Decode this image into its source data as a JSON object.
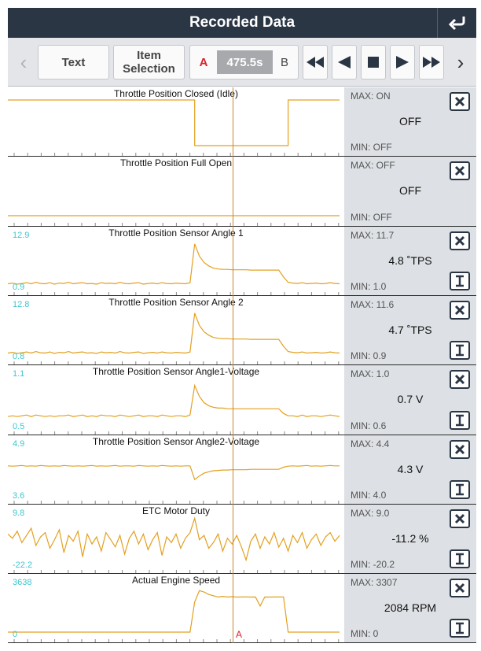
{
  "header": {
    "title": "Recorded Data"
  },
  "toolbar": {
    "text_label": "Text",
    "item_selection_label": "Item\nSelection",
    "a_label": "A",
    "time": "475.5s",
    "b_label": "B"
  },
  "cursor_label": "A",
  "colors": {
    "trace": "#e3a020",
    "scale": "#3fc6cf",
    "header": "#2b3645",
    "panel": "#dde0e4"
  },
  "rows": [
    {
      "title": "Throttle Position Closed (Idle)",
      "max": "MAX: ON",
      "value": "OFF",
      "min": "MIN: OFF",
      "y_top": "",
      "y_bottom": "",
      "has_cursor_btn": false,
      "trace": [
        1,
        1,
        1,
        1,
        1,
        1,
        1,
        1,
        1,
        1,
        1,
        1,
        1,
        1,
        1,
        1,
        1,
        1,
        1,
        1,
        1,
        1,
        1,
        1,
        1,
        1,
        1,
        1,
        1,
        1,
        1,
        1,
        1,
        1,
        1,
        1,
        1,
        1,
        1,
        1,
        0,
        0,
        0,
        0,
        0,
        0,
        0,
        0,
        0,
        0,
        0,
        0,
        0,
        0,
        0,
        0,
        0,
        0,
        0,
        0,
        1,
        1,
        1,
        1,
        1,
        1,
        1,
        1,
        1,
        1,
        1,
        1
      ]
    },
    {
      "title": "Throttle Position Full Open",
      "max": "MAX: OFF",
      "value": "OFF",
      "min": "MIN: OFF",
      "y_top": "",
      "y_bottom": "",
      "has_cursor_btn": false,
      "trace": [
        0,
        0,
        0,
        0,
        0,
        0,
        0,
        0,
        0,
        0,
        0,
        0,
        0,
        0,
        0,
        0,
        0,
        0,
        0,
        0,
        0,
        0,
        0,
        0,
        0,
        0,
        0,
        0,
        0,
        0,
        0,
        0,
        0,
        0,
        0,
        0,
        0,
        0,
        0,
        0,
        0,
        0,
        0,
        0,
        0,
        0,
        0,
        0,
        0,
        0,
        0,
        0,
        0,
        0,
        0,
        0,
        0,
        0,
        0,
        0,
        0,
        0,
        0,
        0,
        0,
        0,
        0,
        0,
        0,
        0,
        0,
        0
      ]
    },
    {
      "title": "Throttle Position Sensor Angle 1",
      "max": "MAX: 11.7",
      "value": "4.8 ˚TPS",
      "min": "MIN: 1.0",
      "y_top": "12.9",
      "y_bottom": "0.9",
      "has_cursor_btn": true,
      "trace": [
        1.2,
        1.4,
        1.1,
        1.3,
        1.5,
        1.2,
        1.6,
        1.3,
        1.2,
        1.5,
        1.1,
        1.4,
        1.3,
        1.6,
        1.2,
        1.4,
        1.5,
        1.2,
        1.3,
        1.1,
        1.5,
        1.3,
        1.4,
        1.2,
        1.6,
        1.3,
        1.2,
        1.4,
        1.5,
        1.1,
        1.3,
        1.4,
        1.2,
        1.5,
        1.3,
        1.2,
        1.4,
        1.3,
        1.2,
        1.5,
        11.7,
        8.5,
        6.8,
        5.9,
        5.3,
        5.1,
        5.0,
        5.0,
        4.9,
        4.9,
        4.9,
        4.9,
        4.8,
        4.8,
        4.8,
        4.8,
        4.8,
        4.8,
        4.8,
        3.0,
        1.6,
        1.4,
        1.3,
        1.5,
        1.2,
        1.3,
        1.4,
        1.2,
        1.3,
        1.5,
        1.3,
        1.2
      ]
    },
    {
      "title": "Throttle Position Sensor Angle 2",
      "max": "MAX: 11.6",
      "value": "4.7 ˚TPS",
      "min": "MIN: 0.9",
      "y_top": "12.8",
      "y_bottom": "0.8",
      "has_cursor_btn": true,
      "trace": [
        1.1,
        1.3,
        1.0,
        1.2,
        1.4,
        1.1,
        1.5,
        1.2,
        1.1,
        1.4,
        1.0,
        1.3,
        1.2,
        1.5,
        1.1,
        1.3,
        1.4,
        1.1,
        1.2,
        1.0,
        1.4,
        1.2,
        1.3,
        1.1,
        1.5,
        1.2,
        1.1,
        1.3,
        1.4,
        1.0,
        1.2,
        1.3,
        1.1,
        1.4,
        1.2,
        1.1,
        1.3,
        1.2,
        1.1,
        1.4,
        11.6,
        8.4,
        6.7,
        5.8,
        5.2,
        5.0,
        4.9,
        4.9,
        4.8,
        4.8,
        4.8,
        4.8,
        4.7,
        4.7,
        4.7,
        4.7,
        4.7,
        4.7,
        4.7,
        2.9,
        1.5,
        1.3,
        1.2,
        1.4,
        1.1,
        1.2,
        1.3,
        1.1,
        1.2,
        1.4,
        1.2,
        1.1
      ]
    },
    {
      "title": "Throttle Position Sensor Angle1-Voltage",
      "max": "MAX: 1.0",
      "value": "0.7 V",
      "min": "MIN: 0.6",
      "y_top": "1.1",
      "y_bottom": "0.5",
      "has_cursor_btn": true,
      "trace": [
        0.6,
        0.61,
        0.6,
        0.61,
        0.62,
        0.6,
        0.62,
        0.61,
        0.6,
        0.61,
        0.6,
        0.61,
        0.61,
        0.62,
        0.6,
        0.61,
        0.62,
        0.6,
        0.61,
        0.6,
        0.62,
        0.61,
        0.61,
        0.6,
        0.62,
        0.61,
        0.6,
        0.61,
        0.62,
        0.6,
        0.61,
        0.61,
        0.6,
        0.62,
        0.61,
        0.6,
        0.61,
        0.61,
        0.6,
        0.62,
        1.0,
        0.86,
        0.78,
        0.74,
        0.72,
        0.71,
        0.71,
        0.7,
        0.7,
        0.7,
        0.7,
        0.7,
        0.7,
        0.7,
        0.7,
        0.7,
        0.7,
        0.7,
        0.7,
        0.64,
        0.61,
        0.61,
        0.6,
        0.62,
        0.6,
        0.61,
        0.61,
        0.6,
        0.61,
        0.62,
        0.61,
        0.6
      ]
    },
    {
      "title": "Throttle Position Sensor Angle2-Voltage",
      "max": "MAX: 4.4",
      "value": "4.3 V",
      "min": "MIN: 4.0",
      "y_top": "4.9",
      "y_bottom": "3.6",
      "has_cursor_btn": true,
      "trace": [
        4.39,
        4.38,
        4.39,
        4.4,
        4.38,
        4.39,
        4.38,
        4.4,
        4.39,
        4.38,
        4.39,
        4.38,
        4.4,
        4.39,
        4.38,
        4.39,
        4.38,
        4.39,
        4.4,
        4.38,
        4.39,
        4.38,
        4.39,
        4.4,
        4.38,
        4.39,
        4.39,
        4.38,
        4.4,
        4.39,
        4.38,
        4.39,
        4.38,
        4.4,
        4.39,
        4.38,
        4.39,
        4.38,
        4.39,
        4.39,
        4.0,
        4.1,
        4.18,
        4.22,
        4.25,
        4.26,
        4.27,
        4.27,
        4.28,
        4.28,
        4.28,
        4.28,
        4.29,
        4.29,
        4.29,
        4.29,
        4.29,
        4.29,
        4.29,
        4.35,
        4.38,
        4.39,
        4.38,
        4.39,
        4.4,
        4.38,
        4.39,
        4.38,
        4.39,
        4.4,
        4.39,
        4.39
      ]
    },
    {
      "title": "ETC Motor Duty",
      "max": "MAX: 9.0",
      "value": "-11.2 %",
      "min": "MIN: -20.2",
      "y_top": "9.8",
      "y_bottom": "-22.2",
      "has_cursor_btn": true,
      "trace": [
        -2,
        -5,
        0,
        -8,
        -3,
        2,
        -10,
        -4,
        -1,
        -12,
        -6,
        1,
        -15,
        -3,
        -7,
        0,
        -18,
        -2,
        -9,
        -4,
        -14,
        -1,
        -6,
        -11,
        -3,
        -16,
        -5,
        0,
        -9,
        -2,
        -13,
        -6,
        -1,
        -17,
        -4,
        -8,
        -2,
        -12,
        -5,
        -1,
        9.0,
        -6,
        -3,
        -12,
        -8,
        -2,
        -14,
        -5,
        -9,
        -3,
        -11,
        -20.2,
        -7,
        -2,
        -12,
        -4,
        -9,
        -1,
        -11.2,
        -5,
        -14,
        -3,
        -8,
        -1,
        -12,
        -6,
        -2,
        -10,
        -4,
        -1,
        -7,
        -3
      ]
    },
    {
      "title": "Actual Engine Speed",
      "max": "MAX: 3307",
      "value": "2084 RPM",
      "min": "MIN: 0",
      "y_top": "3638",
      "y_bottom": "0",
      "has_cursor_btn": true,
      "trace": [
        0,
        0,
        0,
        0,
        0,
        0,
        0,
        0,
        0,
        0,
        0,
        0,
        0,
        0,
        0,
        0,
        0,
        0,
        0,
        0,
        0,
        0,
        0,
        0,
        0,
        0,
        0,
        0,
        0,
        0,
        0,
        0,
        0,
        0,
        0,
        0,
        0,
        0,
        0,
        0,
        2400,
        3307,
        3200,
        3000,
        2900,
        2800,
        2850,
        2800,
        2820,
        2790,
        2800,
        2810,
        2790,
        2800,
        2084,
        2800,
        2790,
        2800,
        2800,
        2800,
        0,
        0,
        0,
        0,
        0,
        0,
        0,
        0,
        0,
        0,
        0,
        0
      ]
    }
  ]
}
